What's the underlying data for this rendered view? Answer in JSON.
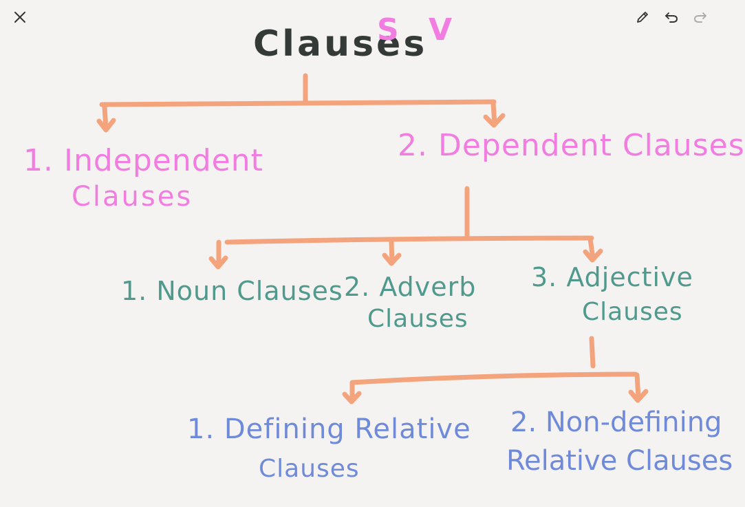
{
  "toolbar": {
    "close_icon": "close-icon",
    "pen_icon": "pencil-icon",
    "undo_icon": "undo-icon",
    "redo_icon": "redo-icon"
  },
  "colors": {
    "background": "#f5f3f1",
    "arrows": "#f4a47c",
    "title": "#333a38",
    "pink": "#f27de0",
    "teal": "#4f9a8d",
    "blue": "#6f8ad9"
  },
  "note": {
    "title": "Clauses",
    "sv_mark": "S V",
    "branches": {
      "independent": [
        "1. Independent",
        "Clauses"
      ],
      "dependent": "2. Dependent Clauses"
    },
    "dependent_types": {
      "noun": "1. Noun Clauses",
      "adverb": [
        "2. Adverb",
        "Clauses"
      ],
      "adjective": [
        "3. Adjective",
        "Clauses"
      ]
    },
    "adjective_types": {
      "defining": [
        "1. Defining Relative",
        "Clauses"
      ],
      "non_defining": [
        "2. Non-defining",
        "Relative Clauses"
      ]
    }
  }
}
